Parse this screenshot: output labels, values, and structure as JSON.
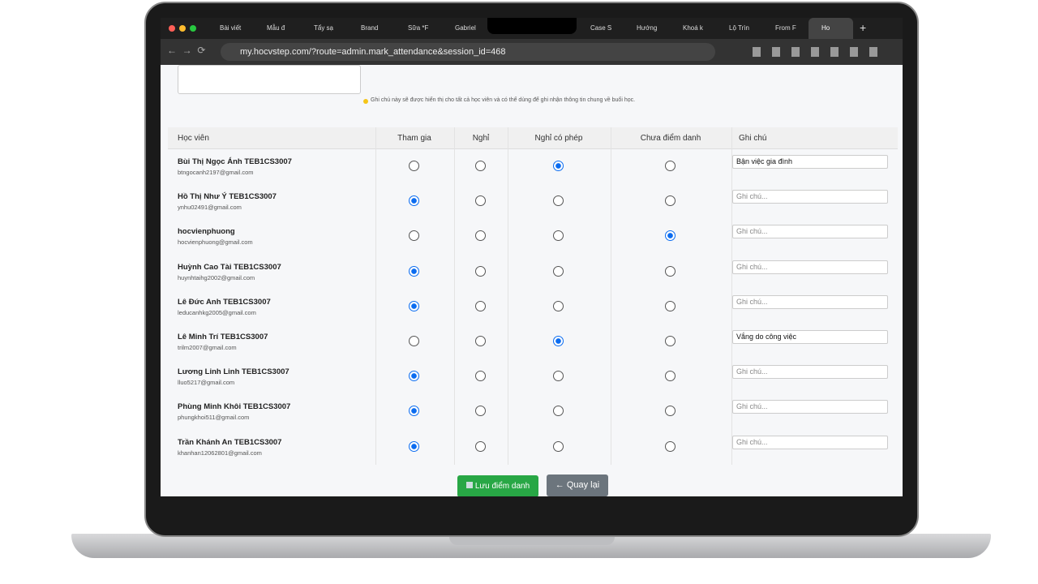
{
  "browser": {
    "tabs": [
      "Bài viết",
      "Mẫu đ",
      "Tẩy sạ",
      "Brand",
      "Sữa *F",
      "Gabriel",
      "Case S",
      "Hướng",
      "Khoá k",
      "Lộ Trìn",
      "From F",
      "Ho"
    ],
    "url": "my.hocvstep.com/?route=admin.mark_attendance&session_id=468"
  },
  "note_hint": "Ghi chú này sẽ được hiển thị cho tất cả học viên và có thể dùng để ghi nhận thông tin chung về buổi học.",
  "table": {
    "headers": [
      "Học viên",
      "Tham gia",
      "Nghỉ",
      "Nghỉ có phép",
      "Chưa điểm danh",
      "Ghi chú"
    ],
    "rows": [
      {
        "name": "Bùi Thị Ngọc Ánh TEB1CS3007",
        "email": "btngocanh2197@gmail.com",
        "selected": 2,
        "note": "Bận việc gia đình"
      },
      {
        "name": "Hồ Thị Như Ý TEB1CS3007",
        "email": "ynhu02491@gmail.com",
        "selected": 0,
        "placeholder": "Ghi chú..."
      },
      {
        "name": "hocvienphuong",
        "email": "hocvienphuong@gmail.com",
        "selected": 3,
        "placeholder": "Ghi chú..."
      },
      {
        "name": "Huỳnh Cao Tài TEB1CS3007",
        "email": "huynhtaihg2002@gmail.com",
        "selected": 0,
        "placeholder": "Ghi chú..."
      },
      {
        "name": "Lê Đức Anh TEB1CS3007",
        "email": "leducanhkg2005@gmail.com",
        "selected": 0,
        "placeholder": "Ghi chú..."
      },
      {
        "name": "Lê Minh Trí TEB1CS3007",
        "email": "trilm2007@gmail.com",
        "selected": 2,
        "note": "Vắng do công việc"
      },
      {
        "name": "Lương Linh Linh TEB1CS3007",
        "email": "lluo5217@gmail.com",
        "selected": 0,
        "placeholder": "Ghi chú..."
      },
      {
        "name": "Phùng Minh Khôi TEB1CS3007",
        "email": "phungkhoi511@gmail.com",
        "selected": 0,
        "placeholder": "Ghi chú..."
      },
      {
        "name": "Trần Khánh An TEB1CS3007",
        "email": "khanhan12062801@gmail.com",
        "selected": 0,
        "placeholder": "Ghi chú..."
      }
    ]
  },
  "buttons": {
    "save": "Lưu điểm danh",
    "back": "← Quay lại"
  }
}
